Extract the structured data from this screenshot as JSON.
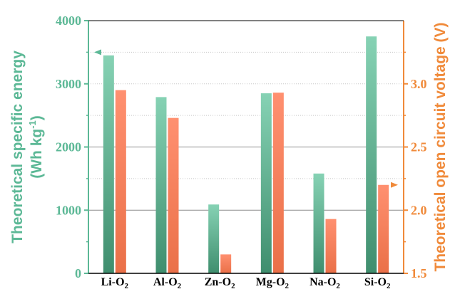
{
  "chart_data": {
    "type": "bar",
    "categories": [
      {
        "base": "Li-O",
        "sub": "2"
      },
      {
        "base": "Al-O",
        "sub": "2"
      },
      {
        "base": "Zn-O",
        "sub": "2"
      },
      {
        "base": "Mg-O",
        "sub": "2"
      },
      {
        "base": "Na-O",
        "sub": "2"
      },
      {
        "base": "Si-O",
        "sub": "2"
      }
    ],
    "series": [
      {
        "axis": "left",
        "color": "#6dc4a4",
        "values": [
          3450,
          2790,
          1090,
          2850,
          1580,
          3750
        ]
      },
      {
        "axis": "right",
        "color": "#fe8863",
        "values": [
          2.95,
          2.73,
          1.65,
          2.93,
          1.93,
          2.2
        ]
      }
    ],
    "yleft": {
      "label": {
        "text": "Theoretical specific energy",
        "line2_prefix": "(Wh kg",
        "line2_sup": "-1",
        "line2_suffix": ")"
      },
      "ylim": [
        0,
        4000
      ],
      "ticks": [
        0,
        1000,
        2000,
        3000,
        4000
      ],
      "color": "#5cb896"
    },
    "yright": {
      "label": "Theoretical open circuit voltage (V)",
      "ylim": [
        1.5,
        3.5
      ],
      "ticks": [
        "1.5",
        "2.0",
        "2.5",
        "3.0"
      ],
      "color": "#f08a3a"
    },
    "gridlines": [
      1000,
      2000
    ],
    "dotted_gridlines": [
      1500,
      2500,
      3000,
      3500
    ],
    "axis_arrows": [
      {
        "points_to": "left",
        "at_value": 3500,
        "near_category": 0
      },
      {
        "points_to": "right",
        "at_value": 2.2,
        "near_category": 5
      }
    ]
  }
}
